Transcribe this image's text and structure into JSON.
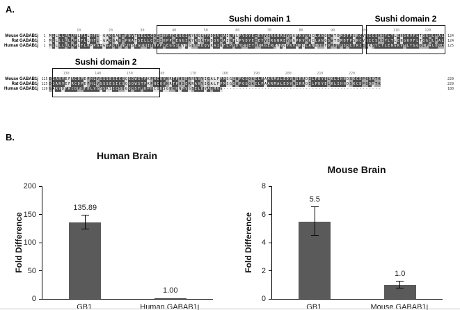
{
  "figure": {
    "panel_a_label": "A.",
    "panel_b_label": "B."
  },
  "alignment": {
    "blocks": [
      {
        "pos_offset": 0,
        "ruler": [
          10,
          20,
          30,
          40,
          50,
          60,
          70,
          80,
          90,
          100,
          110,
          120
        ],
        "domains": [
          {
            "label": "Sushi domain 1",
            "from": 35,
            "to": 99
          },
          {
            "label": "Sushi domain 2",
            "from": 101,
            "to": 125
          }
        ],
        "rows": [
          {
            "name": "Mouse GABAB1j",
            "start": "1",
            "end": "124",
            "seq": "MLLLLLLAPLFLLHFL-GAQGAQTPNVTSELLCQIIHPPWEGGIRYRQLTRDQVKAINFLPVDYEIEYVCRGNREVVGPKVRKCLANGSWTDMDTPSRCVRICSKSYLTLENGKVFLTQGDLPAL"
          },
          {
            "name": "Rat GABAB1j",
            "start": "1",
            "end": "124",
            "seq": "MLLLLLLAPLFLLHFL-GAQGAQTPNATSELLCQIIHPPWEGGIRYRQLTRDQVKAINFLPVDYEIEYVCRGNREVVGPKVRKCLANGSWTDMDTPSRCVRICSKSYLTLENGKVFLTQGDLPAL"
          },
          {
            "name": "Human GABAB1j",
            "start": "1",
            "end": "125",
            "seq": "MLLLLLLAPLFLRPPGAGGAQTPNATSEGCQIIHPPWEGGIRYRGLTRDQVKAINFLPVDYEIEYVCRGEREVVGPKVRKCLANGSWTDMDTPSRCVRICSKSYLTLENGKVFLTGGDLPALDGA"
          }
        ]
      },
      {
        "pos_offset": 124,
        "ruler": [
          130,
          140,
          150,
          160,
          170,
          180,
          190,
          200,
          210,
          220
        ],
        "domains": [
          {
            "label": "Sushi domain 2",
            "from": 126,
            "to": 159
          }
        ],
        "rows": [
          {
            "name": "Mouse GABAB1j",
            "start": "125",
            "end": "229",
            "seq": "DGARVEFRCDPDFHLVGSSESICSQGQWSTPKPHCQVNRTPHSERRAVYIGALFPMSGGWPGGQACLPAARMALEDVNSRRDILPDYELKLIHHDSKCDPGQATK"
          },
          {
            "name": "Rat GABAB1j",
            "start": "125",
            "end": "229",
            "seq": "DGARVEFRCDPDFHLVGSSESICSQGQWSTPKPHCQVNRTPHSERRAVYIGALFPMSGGWPGGQACLPAARMALEDVNSRRDILPDYELKLIHHDSKCDPGQVTK"
          },
          {
            "name": "Human GABAB1j",
            "start": "126",
            "end": "180",
            "seq": "GARVDFRCDPDFHLVGSSRSICSQGQWSTPKPHCQDSGVWVNMVGSELDVAHMVG--------------------------------------------------"
          }
        ]
      }
    ]
  },
  "chart_data": [
    {
      "type": "bar",
      "title": "Human Brain",
      "ylabel": "Fold Difference",
      "xlabel": "",
      "categories": [
        "GB1",
        "Human GABAB1j"
      ],
      "values": [
        135.89,
        1.0
      ],
      "value_labels": [
        "135.89",
        "1.00"
      ],
      "errors": [
        12,
        0
      ],
      "yticks": [
        0,
        50,
        100,
        150,
        200
      ],
      "ylim": [
        0,
        200
      ],
      "grid": false,
      "legend": "none",
      "bar_color": "#5a5a5a"
    },
    {
      "type": "bar",
      "title": "Mouse Brain",
      "ylabel": "Fold Difference",
      "xlabel": "",
      "categories": [
        "GB1",
        "Mouse GABAB1j"
      ],
      "values": [
        5.5,
        1.0
      ],
      "value_labels": [
        "5.5",
        "1.0"
      ],
      "errors": [
        1.0,
        0.25
      ],
      "yticks": [
        0,
        2,
        4,
        6,
        8
      ],
      "ylim": [
        0,
        8
      ],
      "grid": false,
      "legend": "none",
      "bar_color": "#5a5a5a"
    }
  ]
}
